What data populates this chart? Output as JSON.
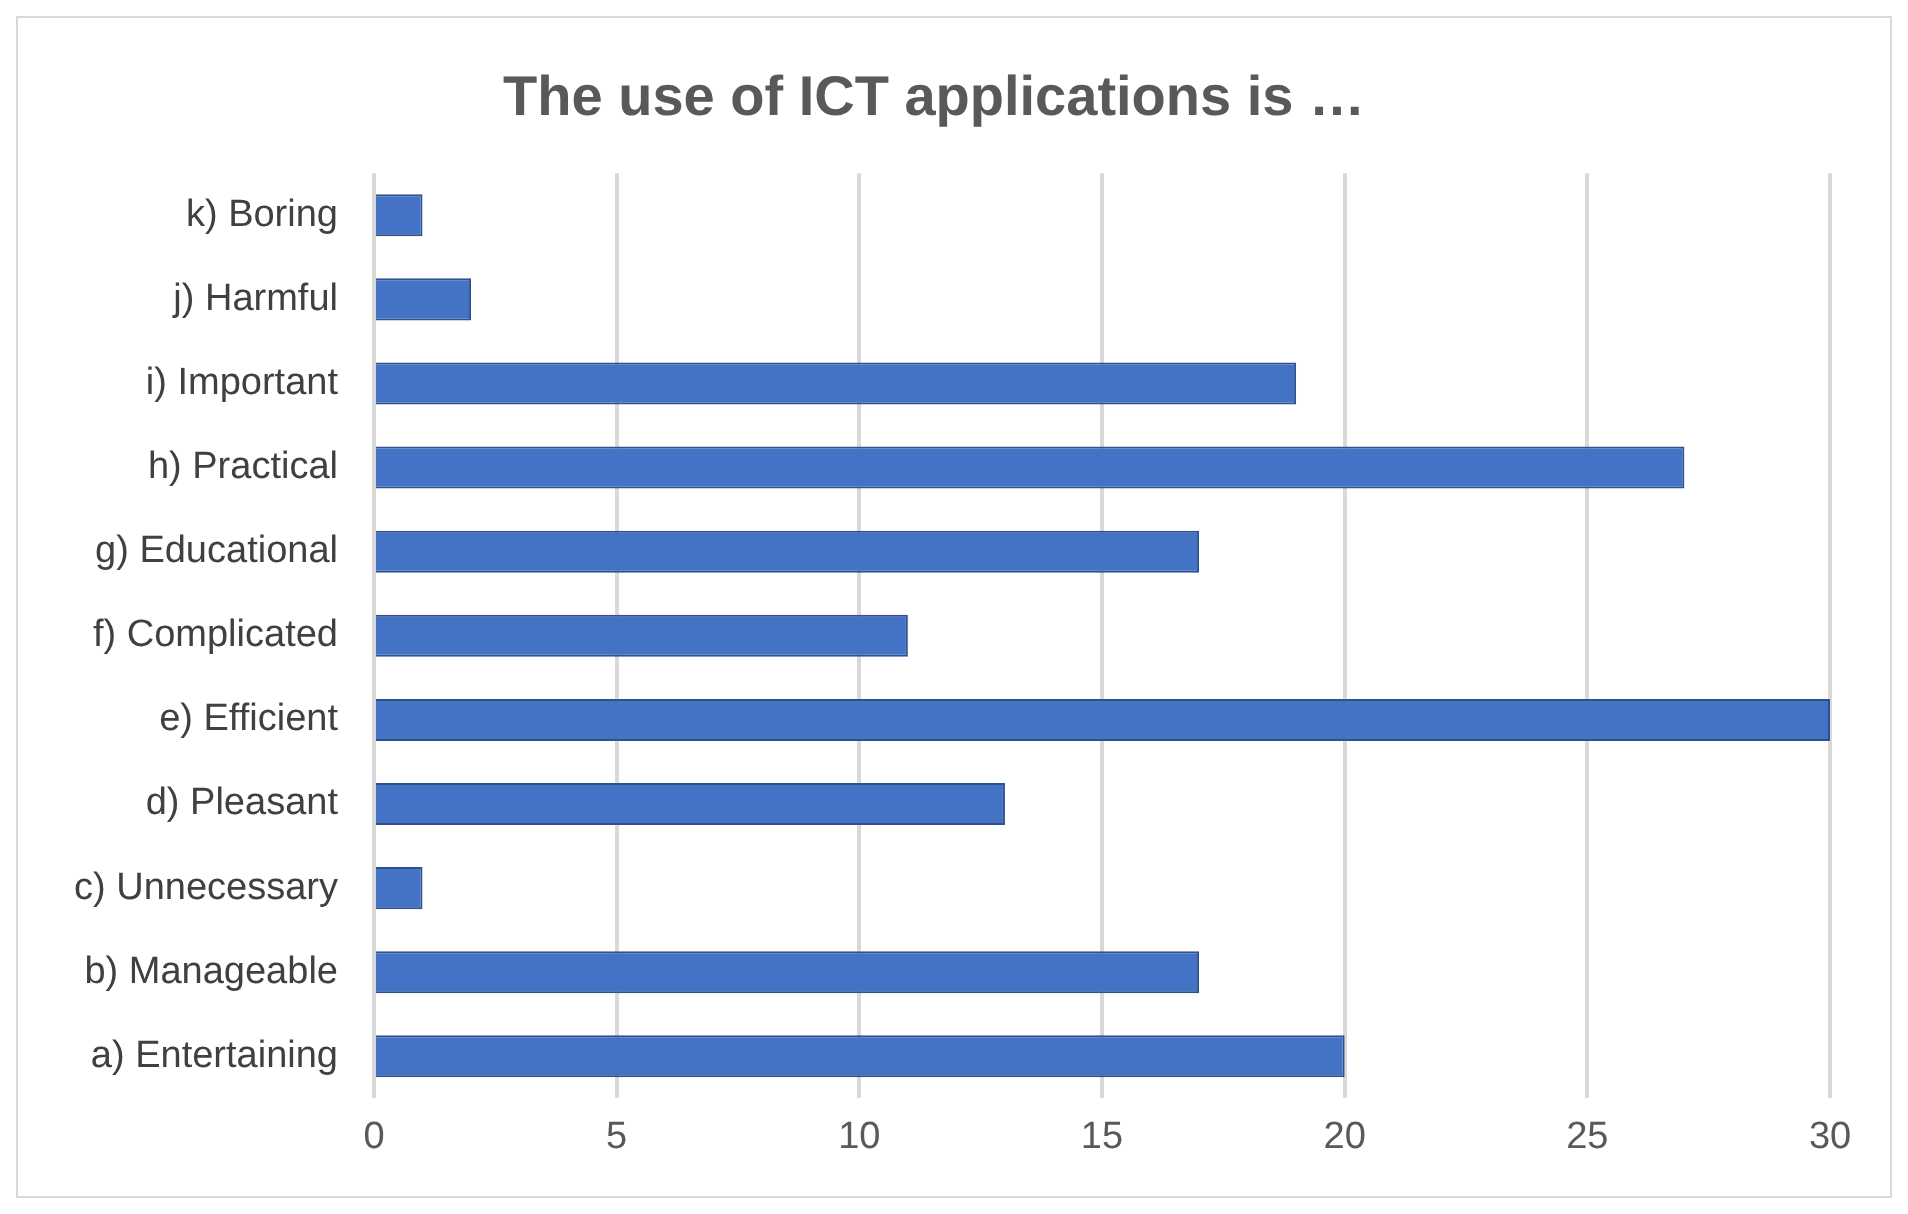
{
  "chart_data": {
    "type": "bar",
    "title": "The use of ICT applications is …",
    "orientation": "horizontal",
    "categories": [
      "k) Boring",
      "j) Harmful",
      "i) Important",
      "h) Practical",
      "g) Educational",
      "f) Complicated",
      "e) Efficient",
      "d) Pleasant",
      "c) Unnecessary",
      "b) Manageable",
      "a) Entertaining"
    ],
    "values": [
      1,
      2,
      19,
      27,
      17,
      11,
      30,
      13,
      1,
      17,
      20
    ],
    "color": "#4472c4",
    "xlim": [
      0,
      30
    ],
    "xticks": [
      0,
      5,
      10,
      15,
      20,
      25,
      30
    ],
    "grid": "x",
    "legend": false
  }
}
